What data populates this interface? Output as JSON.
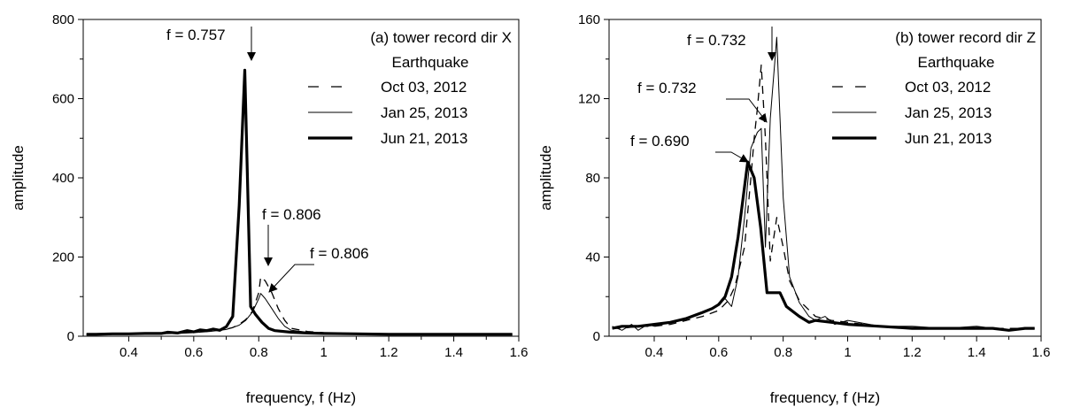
{
  "chart_data": [
    {
      "type": "line",
      "title": "(a) tower record dir X",
      "subtitle": "Earthquake",
      "xlabel": "frequency, f (Hz)",
      "ylabel": "amplitude",
      "xlim": [
        0.26,
        1.6
      ],
      "ylim": [
        0,
        800
      ],
      "xticks": [
        0.4,
        0.6,
        0.8,
        1,
        1.2,
        1.4,
        1.6
      ],
      "xtick_labels": [
        "0.4",
        "0.6",
        "0.8",
        "1",
        "1.2",
        "1.4",
        "1.6"
      ],
      "yticks": [
        0,
        200,
        400,
        600,
        800
      ],
      "ytick_labels": [
        "0",
        "200",
        "400",
        "600",
        "800"
      ],
      "legend_position": "top-right",
      "series": [
        {
          "name": "Oct 03, 2012",
          "style": "dashed",
          "x": [
            0.27,
            0.3,
            0.35,
            0.4,
            0.45,
            0.5,
            0.55,
            0.6,
            0.65,
            0.7,
            0.72,
            0.74,
            0.76,
            0.78,
            0.8,
            0.806,
            0.82,
            0.84,
            0.86,
            0.88,
            0.9,
            0.95,
            1.0,
            1.1,
            1.2,
            1.3,
            1.4,
            1.5,
            1.58
          ],
          "y": [
            5,
            5,
            6,
            6,
            7,
            7,
            8,
            10,
            13,
            18,
            22,
            30,
            42,
            62,
            110,
            150,
            140,
            110,
            70,
            40,
            20,
            12,
            9,
            7,
            6,
            5,
            5,
            5,
            5
          ]
        },
        {
          "name": "Jan 25, 2013",
          "style": "thin",
          "x": [
            0.27,
            0.3,
            0.35,
            0.4,
            0.45,
            0.5,
            0.55,
            0.6,
            0.65,
            0.7,
            0.72,
            0.74,
            0.76,
            0.78,
            0.8,
            0.806,
            0.82,
            0.84,
            0.86,
            0.88,
            0.9,
            0.95,
            1.0,
            1.1,
            1.2,
            1.3,
            1.4,
            1.5,
            1.58
          ],
          "y": [
            4,
            4,
            5,
            5,
            6,
            6,
            7,
            9,
            12,
            17,
            22,
            28,
            40,
            60,
            95,
            108,
            95,
            70,
            45,
            25,
            15,
            10,
            8,
            6,
            5,
            4,
            4,
            4,
            4
          ]
        },
        {
          "name": "Jun 21, 2013",
          "style": "thick",
          "x": [
            0.27,
            0.3,
            0.35,
            0.4,
            0.45,
            0.5,
            0.52,
            0.55,
            0.58,
            0.6,
            0.62,
            0.64,
            0.66,
            0.68,
            0.7,
            0.72,
            0.74,
            0.757,
            0.775,
            0.79,
            0.81,
            0.83,
            0.85,
            0.9,
            0.95,
            1.0,
            1.1,
            1.2,
            1.3,
            1.4,
            1.5,
            1.58
          ],
          "y": [
            5,
            5,
            6,
            6,
            7,
            7,
            10,
            8,
            14,
            11,
            16,
            14,
            18,
            15,
            24,
            50,
            330,
            672,
            75,
            55,
            35,
            20,
            14,
            10,
            8,
            7,
            6,
            5,
            5,
            5,
            5,
            5
          ]
        }
      ],
      "annotations": [
        {
          "text": "f = 0.757",
          "x": 0.757,
          "y": 672
        },
        {
          "text": "f = 0.806",
          "x": 0.806,
          "y": 150
        },
        {
          "text": "f = 0.806",
          "x": 0.806,
          "y": 108
        }
      ]
    },
    {
      "type": "line",
      "title": "(b) tower record dir Z",
      "subtitle": "Earthquake",
      "xlabel": "frequency, f (Hz)",
      "ylabel": "amplitude",
      "xlim": [
        0.26,
        1.6
      ],
      "ylim": [
        0,
        160
      ],
      "xticks": [
        0.4,
        0.6,
        0.8,
        1,
        1.2,
        1.4,
        1.6
      ],
      "xtick_labels": [
        "0.4",
        "0.6",
        "0.8",
        "1",
        "1.2",
        "1.4",
        "1.6"
      ],
      "yticks": [
        0,
        40,
        80,
        120,
        160
      ],
      "ytick_labels": [
        "0",
        "40",
        "80",
        "120",
        "160"
      ],
      "legend_position": "top-right",
      "series": [
        {
          "name": "Oct 03, 2012",
          "style": "dashed",
          "x": [
            0.27,
            0.3,
            0.35,
            0.4,
            0.45,
            0.5,
            0.55,
            0.6,
            0.63,
            0.65,
            0.68,
            0.7,
            0.71,
            0.72,
            0.732,
            0.745,
            0.76,
            0.78,
            0.8,
            0.82,
            0.85,
            0.9,
            0.95,
            1.0,
            1.1,
            1.2,
            1.3,
            1.4,
            1.5,
            1.58
          ],
          "y": [
            4,
            4,
            5,
            5,
            6,
            8,
            10,
            13,
            18,
            25,
            45,
            80,
            100,
            115,
            137,
            100,
            38,
            60,
            45,
            28,
            18,
            10,
            8,
            7,
            5,
            4,
            4,
            4,
            4,
            4
          ]
        },
        {
          "name": "Jan 25, 2013",
          "style": "thin",
          "x": [
            0.27,
            0.3,
            0.33,
            0.35,
            0.38,
            0.4,
            0.45,
            0.5,
            0.55,
            0.6,
            0.62,
            0.64,
            0.66,
            0.68,
            0.7,
            0.72,
            0.732,
            0.745,
            0.76,
            0.78,
            0.8,
            0.82,
            0.85,
            0.88,
            0.9,
            0.93,
            0.96,
            1.0,
            1.1,
            1.2,
            1.3,
            1.4,
            1.5,
            1.58
          ],
          "y": [
            5,
            3,
            6,
            3,
            6,
            5,
            7,
            9,
            12,
            16,
            19,
            15,
            30,
            60,
            95,
            103,
            105,
            45,
            110,
            151,
            70,
            30,
            17,
            10,
            8,
            10,
            6,
            8,
            5,
            5,
            4,
            5,
            3,
            4
          ]
        },
        {
          "name": "Jun 21, 2013",
          "style": "thick",
          "x": [
            0.27,
            0.3,
            0.35,
            0.4,
            0.45,
            0.5,
            0.55,
            0.58,
            0.6,
            0.62,
            0.64,
            0.66,
            0.69,
            0.71,
            0.73,
            0.75,
            0.77,
            0.79,
            0.81,
            0.85,
            0.88,
            0.9,
            0.95,
            1.0,
            1.1,
            1.2,
            1.3,
            1.4,
            1.45,
            1.5,
            1.55,
            1.58
          ],
          "y": [
            4,
            5,
            5,
            6,
            7,
            9,
            12,
            14,
            16,
            20,
            30,
            50,
            88,
            80,
            55,
            22,
            22,
            22,
            15,
            10,
            7,
            8,
            7,
            6,
            5,
            4,
            4,
            4,
            4,
            3,
            4,
            4
          ]
        }
      ],
      "annotations": [
        {
          "text": "f = 0.732",
          "x": 0.732,
          "y": 137
        },
        {
          "text": "f = 0.732",
          "x": 0.732,
          "y": 105
        },
        {
          "text": "f = 0.690",
          "x": 0.69,
          "y": 88
        }
      ]
    }
  ]
}
